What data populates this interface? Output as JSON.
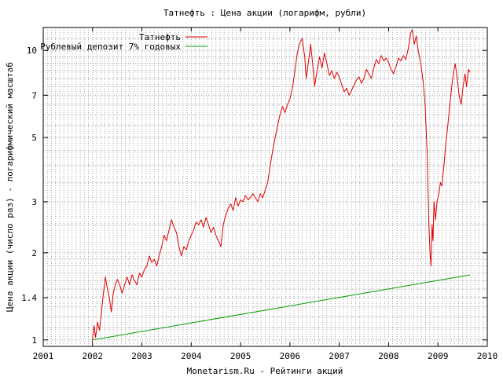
{
  "chart_data": {
    "type": "line",
    "title": "Татнефть : Цена акции (логарифм, рубли)",
    "xlabel": "Monetarism.Ru - Рейтинги акций",
    "ylabel": "Цена акции (число раз) - логарифмический масштаб",
    "x_ticks": [
      "2001",
      "2002",
      "2003",
      "2004",
      "2005",
      "2006",
      "2007",
      "2008",
      "2009",
      "2010"
    ],
    "y_ticks": [
      1,
      1.4,
      2,
      3,
      5,
      7,
      10
    ],
    "xlim": [
      2001,
      2010
    ],
    "ylim": [
      0.95,
      12
    ],
    "y_scale": "log",
    "grid": true,
    "legend_position": "top-left",
    "series": [
      {
        "name": "Татнефть",
        "color": "#e00000",
        "points": [
          [
            2001.99,
            0.98
          ],
          [
            2002.03,
            1.12
          ],
          [
            2002.06,
            1.02
          ],
          [
            2002.1,
            1.15
          ],
          [
            2002.14,
            1.08
          ],
          [
            2002.18,
            1.25
          ],
          [
            2002.22,
            1.45
          ],
          [
            2002.26,
            1.65
          ],
          [
            2002.3,
            1.5
          ],
          [
            2002.34,
            1.4
          ],
          [
            2002.38,
            1.25
          ],
          [
            2002.42,
            1.45
          ],
          [
            2002.46,
            1.55
          ],
          [
            2002.5,
            1.62
          ],
          [
            2002.55,
            1.55
          ],
          [
            2002.6,
            1.45
          ],
          [
            2002.65,
            1.55
          ],
          [
            2002.7,
            1.65
          ],
          [
            2002.75,
            1.55
          ],
          [
            2002.8,
            1.68
          ],
          [
            2002.85,
            1.6
          ],
          [
            2002.9,
            1.55
          ],
          [
            2002.95,
            1.7
          ],
          [
            2003.0,
            1.65
          ],
          [
            2003.05,
            1.75
          ],
          [
            2003.1,
            1.8
          ],
          [
            2003.15,
            1.95
          ],
          [
            2003.2,
            1.85
          ],
          [
            2003.25,
            1.9
          ],
          [
            2003.3,
            1.8
          ],
          [
            2003.35,
            1.95
          ],
          [
            2003.4,
            2.1
          ],
          [
            2003.45,
            2.3
          ],
          [
            2003.5,
            2.2
          ],
          [
            2003.55,
            2.4
          ],
          [
            2003.6,
            2.6
          ],
          [
            2003.65,
            2.45
          ],
          [
            2003.7,
            2.35
          ],
          [
            2003.75,
            2.1
          ],
          [
            2003.8,
            1.95
          ],
          [
            2003.85,
            2.1
          ],
          [
            2003.9,
            2.05
          ],
          [
            2003.95,
            2.2
          ],
          [
            2004.0,
            2.3
          ],
          [
            2004.05,
            2.4
          ],
          [
            2004.1,
            2.55
          ],
          [
            2004.15,
            2.5
          ],
          [
            2004.2,
            2.6
          ],
          [
            2004.25,
            2.45
          ],
          [
            2004.3,
            2.65
          ],
          [
            2004.35,
            2.5
          ],
          [
            2004.4,
            2.35
          ],
          [
            2004.45,
            2.45
          ],
          [
            2004.5,
            2.3
          ],
          [
            2004.55,
            2.2
          ],
          [
            2004.6,
            2.1
          ],
          [
            2004.65,
            2.5
          ],
          [
            2004.7,
            2.7
          ],
          [
            2004.75,
            2.85
          ],
          [
            2004.8,
            2.95
          ],
          [
            2004.85,
            2.8
          ],
          [
            2004.9,
            3.1
          ],
          [
            2004.95,
            2.9
          ],
          [
            2005.0,
            3.05
          ],
          [
            2005.05,
            3.0
          ],
          [
            2005.1,
            3.15
          ],
          [
            2005.15,
            3.05
          ],
          [
            2005.2,
            3.1
          ],
          [
            2005.25,
            3.2
          ],
          [
            2005.3,
            3.1
          ],
          [
            2005.35,
            3.0
          ],
          [
            2005.4,
            3.2
          ],
          [
            2005.45,
            3.1
          ],
          [
            2005.5,
            3.3
          ],
          [
            2005.55,
            3.5
          ],
          [
            2005.6,
            4.0
          ],
          [
            2005.65,
            4.5
          ],
          [
            2005.7,
            5.0
          ],
          [
            2005.75,
            5.5
          ],
          [
            2005.8,
            6.0
          ],
          [
            2005.85,
            6.4
          ],
          [
            2005.9,
            6.1
          ],
          [
            2005.95,
            6.5
          ],
          [
            2006.0,
            6.8
          ],
          [
            2006.05,
            7.4
          ],
          [
            2006.1,
            8.5
          ],
          [
            2006.15,
            9.8
          ],
          [
            2006.2,
            10.6
          ],
          [
            2006.25,
            11.0
          ],
          [
            2006.3,
            9.5
          ],
          [
            2006.33,
            8.0
          ],
          [
            2006.37,
            9.0
          ],
          [
            2006.42,
            10.5
          ],
          [
            2006.46,
            9.0
          ],
          [
            2006.5,
            7.5
          ],
          [
            2006.55,
            8.5
          ],
          [
            2006.6,
            9.5
          ],
          [
            2006.65,
            8.7
          ],
          [
            2006.7,
            9.8
          ],
          [
            2006.75,
            9.0
          ],
          [
            2006.8,
            8.2
          ],
          [
            2006.85,
            8.5
          ],
          [
            2006.9,
            8.0
          ],
          [
            2006.95,
            8.4
          ],
          [
            2007.0,
            8.1
          ],
          [
            2007.05,
            7.6
          ],
          [
            2007.1,
            7.2
          ],
          [
            2007.15,
            7.4
          ],
          [
            2007.2,
            7.0
          ],
          [
            2007.25,
            7.3
          ],
          [
            2007.3,
            7.6
          ],
          [
            2007.35,
            7.9
          ],
          [
            2007.4,
            8.1
          ],
          [
            2007.45,
            7.7
          ],
          [
            2007.5,
            8.0
          ],
          [
            2007.55,
            8.6
          ],
          [
            2007.6,
            8.3
          ],
          [
            2007.65,
            8.0
          ],
          [
            2007.7,
            8.7
          ],
          [
            2007.75,
            9.3
          ],
          [
            2007.8,
            9.0
          ],
          [
            2007.85,
            9.6
          ],
          [
            2007.9,
            9.2
          ],
          [
            2007.95,
            9.4
          ],
          [
            2008.0,
            9.1
          ],
          [
            2008.05,
            8.6
          ],
          [
            2008.1,
            8.3
          ],
          [
            2008.15,
            8.8
          ],
          [
            2008.2,
            9.4
          ],
          [
            2008.25,
            9.2
          ],
          [
            2008.3,
            9.6
          ],
          [
            2008.35,
            9.3
          ],
          [
            2008.4,
            10.2
          ],
          [
            2008.45,
            11.5
          ],
          [
            2008.48,
            11.8
          ],
          [
            2008.52,
            10.5
          ],
          [
            2008.56,
            11.2
          ],
          [
            2008.6,
            10.0
          ],
          [
            2008.65,
            9.0
          ],
          [
            2008.7,
            7.8
          ],
          [
            2008.74,
            6.5
          ],
          [
            2008.78,
            4.5
          ],
          [
            2008.8,
            3.2
          ],
          [
            2008.82,
            2.4
          ],
          [
            2008.84,
            2.0
          ],
          [
            2008.86,
            1.8
          ],
          [
            2008.88,
            2.5
          ],
          [
            2008.9,
            2.2
          ],
          [
            2008.92,
            3.0
          ],
          [
            2008.95,
            2.6
          ],
          [
            2008.98,
            3.0
          ],
          [
            2009.02,
            3.2
          ],
          [
            2009.05,
            3.5
          ],
          [
            2009.08,
            3.4
          ],
          [
            2009.12,
            4.0
          ],
          [
            2009.16,
            4.8
          ],
          [
            2009.2,
            5.5
          ],
          [
            2009.24,
            6.5
          ],
          [
            2009.28,
            7.5
          ],
          [
            2009.32,
            8.5
          ],
          [
            2009.35,
            9.0
          ],
          [
            2009.39,
            8.0
          ],
          [
            2009.43,
            7.0
          ],
          [
            2009.47,
            6.5
          ],
          [
            2009.51,
            7.5
          ],
          [
            2009.55,
            8.3
          ],
          [
            2009.58,
            7.5
          ],
          [
            2009.62,
            8.6
          ],
          [
            2009.65,
            8.4
          ]
        ]
      },
      {
        "name": "Рублевый депозит 7% годовых",
        "color": "#00a000",
        "points": [
          [
            2002.0,
            1.0
          ],
          [
            2009.65,
            1.677
          ]
        ]
      }
    ]
  }
}
